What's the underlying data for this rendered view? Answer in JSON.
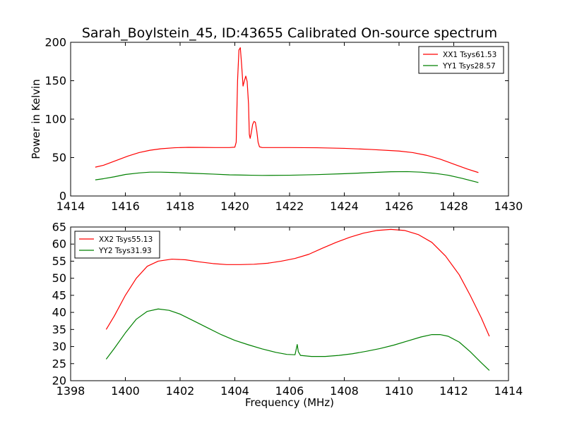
{
  "figure": {
    "title": "Sarah_Boylstein_45, ID:43655 Calibrated On-source spectrum"
  },
  "chart_data": [
    {
      "type": "line",
      "title": "Sarah_Boylstein_45, ID:43655 Calibrated On-source spectrum",
      "xlabel": "",
      "ylabel": "Power in Kelvin",
      "xlim": [
        1414,
        1430
      ],
      "ylim": [
        0,
        200
      ],
      "xticks": [
        "1414",
        "1416",
        "1418",
        "1420",
        "1422",
        "1424",
        "1426",
        "1428",
        "1430"
      ],
      "yticks": [
        "0",
        "50",
        "100",
        "150",
        "200"
      ],
      "grid": false,
      "legend_position": "top-right",
      "series": [
        {
          "name": "XX1 Tsys61.53",
          "color": "#ff0000",
          "points": [
            [
              1414.9,
              37.5
            ],
            [
              1415.2,
              40
            ],
            [
              1415.5,
              44
            ],
            [
              1415.8,
              48
            ],
            [
              1416.1,
              52
            ],
            [
              1416.5,
              56.5
            ],
            [
              1416.9,
              59.5
            ],
            [
              1417.3,
              61.5
            ],
            [
              1417.8,
              62.8
            ],
            [
              1418.3,
              63.3
            ],
            [
              1418.8,
              63.2
            ],
            [
              1419.3,
              63
            ],
            [
              1419.8,
              63
            ],
            [
              1420.0,
              63.5
            ],
            [
              1420.05,
              70
            ],
            [
              1420.1,
              150
            ],
            [
              1420.15,
              190
            ],
            [
              1420.2,
              193
            ],
            [
              1420.25,
              170
            ],
            [
              1420.3,
              143
            ],
            [
              1420.35,
              150
            ],
            [
              1420.4,
              156
            ],
            [
              1420.45,
              149
            ],
            [
              1420.5,
              120
            ],
            [
              1420.53,
              80
            ],
            [
              1420.56,
              75
            ],
            [
              1420.6,
              82
            ],
            [
              1420.65,
              93
            ],
            [
              1420.7,
              97
            ],
            [
              1420.75,
              96
            ],
            [
              1420.8,
              85
            ],
            [
              1420.85,
              70
            ],
            [
              1420.9,
              64
            ],
            [
              1421.0,
              63
            ],
            [
              1422.0,
              63
            ],
            [
              1423.0,
              62.8
            ],
            [
              1424.0,
              62
            ],
            [
              1425.0,
              60.5
            ],
            [
              1426.0,
              58.5
            ],
            [
              1426.5,
              56.5
            ],
            [
              1427.0,
              53
            ],
            [
              1427.5,
              48
            ],
            [
              1428.0,
              41.5
            ],
            [
              1428.5,
              35
            ],
            [
              1428.9,
              30.5
            ]
          ]
        },
        {
          "name": "YY1 Tsys28.57",
          "color": "#008000",
          "points": [
            [
              1414.9,
              21
            ],
            [
              1415.2,
              22.5
            ],
            [
              1415.6,
              25
            ],
            [
              1416.0,
              28
            ],
            [
              1416.5,
              30
            ],
            [
              1416.9,
              31
            ],
            [
              1417.3,
              31
            ],
            [
              1417.8,
              30.5
            ],
            [
              1418.5,
              29.5
            ],
            [
              1419.2,
              28.5
            ],
            [
              1419.8,
              27.5
            ],
            [
              1420.2,
              27.3
            ],
            [
              1420.6,
              27
            ],
            [
              1421.0,
              26.8
            ],
            [
              1422.0,
              27
            ],
            [
              1423.0,
              27.8
            ],
            [
              1424.0,
              29
            ],
            [
              1425.0,
              30.5
            ],
            [
              1425.7,
              31.5
            ],
            [
              1426.3,
              31.7
            ],
            [
              1426.8,
              31
            ],
            [
              1427.3,
              29.5
            ],
            [
              1427.8,
              27
            ],
            [
              1428.3,
              23
            ],
            [
              1428.9,
              17.5
            ]
          ]
        }
      ]
    },
    {
      "type": "line",
      "title": "",
      "xlabel": "Frequency (MHz)",
      "ylabel": "",
      "xlim": [
        1398,
        1414
      ],
      "ylim": [
        20,
        65
      ],
      "xticks": [
        "1398",
        "1400",
        "1402",
        "1404",
        "1406",
        "1408",
        "1410",
        "1412",
        "1414"
      ],
      "yticks": [
        "20",
        "25",
        "30",
        "35",
        "40",
        "45",
        "50",
        "55",
        "60",
        "65"
      ],
      "grid": false,
      "legend_position": "top-left",
      "series": [
        {
          "name": "XX2 Tsys55.13",
          "color": "#ff0000",
          "points": [
            [
              1399.3,
              35
            ],
            [
              1399.6,
              39
            ],
            [
              1400.0,
              45
            ],
            [
              1400.4,
              50
            ],
            [
              1400.8,
              53.5
            ],
            [
              1401.2,
              55
            ],
            [
              1401.7,
              55.6
            ],
            [
              1402.2,
              55.4
            ],
            [
              1402.7,
              54.8
            ],
            [
              1403.2,
              54.3
            ],
            [
              1403.7,
              54
            ],
            [
              1404.2,
              54
            ],
            [
              1404.7,
              54.1
            ],
            [
              1405.2,
              54.4
            ],
            [
              1405.7,
              55
            ],
            [
              1406.2,
              55.8
            ],
            [
              1406.7,
              57
            ],
            [
              1407.2,
              58.8
            ],
            [
              1407.7,
              60.5
            ],
            [
              1408.2,
              62
            ],
            [
              1408.7,
              63.2
            ],
            [
              1409.2,
              64
            ],
            [
              1409.7,
              64.3
            ],
            [
              1410.2,
              64
            ],
            [
              1410.7,
              62.8
            ],
            [
              1411.2,
              60.5
            ],
            [
              1411.7,
              56.5
            ],
            [
              1412.2,
              51
            ],
            [
              1412.6,
              45
            ],
            [
              1413.0,
              38.5
            ],
            [
              1413.3,
              33
            ]
          ]
        },
        {
          "name": "YY2 Tsys31.93",
          "color": "#008000",
          "points": [
            [
              1399.3,
              26.3
            ],
            [
              1399.6,
              29.5
            ],
            [
              1400.0,
              34
            ],
            [
              1400.4,
              38
            ],
            [
              1400.8,
              40.3
            ],
            [
              1401.2,
              41
            ],
            [
              1401.6,
              40.6
            ],
            [
              1402.0,
              39.5
            ],
            [
              1402.5,
              37.5
            ],
            [
              1403.0,
              35.5
            ],
            [
              1403.5,
              33.5
            ],
            [
              1404.0,
              31.8
            ],
            [
              1404.5,
              30.5
            ],
            [
              1405.0,
              29.3
            ],
            [
              1405.5,
              28.3
            ],
            [
              1405.9,
              27.7
            ],
            [
              1406.2,
              27.6
            ],
            [
              1406.25,
              29.5
            ],
            [
              1406.28,
              30.6
            ],
            [
              1406.32,
              28.5
            ],
            [
              1406.4,
              27.4
            ],
            [
              1406.8,
              27.1
            ],
            [
              1407.3,
              27.1
            ],
            [
              1407.8,
              27.4
            ],
            [
              1408.3,
              27.9
            ],
            [
              1408.8,
              28.6
            ],
            [
              1409.3,
              29.4
            ],
            [
              1409.8,
              30.4
            ],
            [
              1410.3,
              31.6
            ],
            [
              1410.8,
              32.8
            ],
            [
              1411.2,
              33.5
            ],
            [
              1411.5,
              33.5
            ],
            [
              1411.8,
              33
            ],
            [
              1412.2,
              31.3
            ],
            [
              1412.6,
              28.5
            ],
            [
              1413.0,
              25.3
            ],
            [
              1413.3,
              23
            ]
          ]
        }
      ]
    }
  ]
}
